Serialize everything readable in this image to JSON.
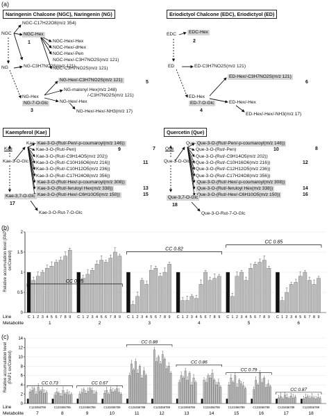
{
  "panel_labels": {
    "a": "(a)",
    "b": "(b)",
    "c": "(c)"
  },
  "pathways": {
    "ngc": {
      "title": "Naringenin Chalcone (NGC), Naringenin (NG)",
      "root": "NGC",
      "root2": "NG",
      "nodes": [
        "NGC-C17H22O8(m/z 354)",
        "NGC-Hex",
        "NGC-Hex/-Hex",
        "NGC-Hex/-dHex",
        "NGC-Hex/-Pen",
        "NGC-Hex/-C3H7NO2S(m/z 121)",
        "NGC-C3H7NO2S(m/z 121)",
        "NG-C3H7NO2S(m/z 121)",
        "NG-Hex/-C3H7NO2S(m/z 121)",
        "NG-malonyl Hex(m/z 248)",
        "/-C3H7NO2S(m/z 121)",
        "NG-Hex",
        "NG-7-O-Glc",
        "NG-Hex/-Hex",
        "NG-Hex/-Hex/-NH3(m/z 17)"
      ],
      "numbers": [
        "1",
        "5",
        "3"
      ]
    },
    "edc": {
      "title": "Eriodictyol Chalcone (EDC), Eriodictyol (ED)",
      "root": "EDC",
      "root2": "ED",
      "nodes": [
        "EDC-Hex",
        "ED-C3H7NO2S(m/z 121)",
        "ED-Hex/-C3H7NO2S(m/z 121)",
        "ED-Hex",
        "ED-7-O-Glc",
        "ED-Hex/-Hex",
        "ED-Hex/-Hex/-NH3(m/z 17)"
      ],
      "numbers": [
        "2",
        "6",
        "4"
      ]
    },
    "kae": {
      "title": "Kaempferol (Kae)",
      "root": "Kae",
      "nodes": [
        "Kae-3-O-Rut",
        "Kae-3-O-(Rut/-Pen/-p-coumaroyl(m/z 146))",
        "Kae-3-O-(Rut/-Pen)",
        "Kae-3-O-(Rut/-C9H14O5(m/z 202))",
        "Kae-3-O-(Rut/-C10H16O6(m/z 216))",
        "Kae-3-O-(Rut/-C10H12O5(m/z 236))",
        "Kae-3-O-(Rut/-C17H24O8(m/z 356))",
        "Kae-3-O-(Rut/-Hex/-p-coumaroyl(m/z 308))",
        "Kae-3-O-(Rut/-feruloyl Hex(m/z 338))",
        "Kae-3-O-(Rut/-Hex/-C6H10O5(m/z 150))",
        "Kae-3-O-Glc",
        "Kae-3,7-O-Glc",
        "Kae-3-O-Rut-7-O-Glc"
      ],
      "numbers": [
        "7",
        "9",
        "11",
        "13",
        "15",
        "17"
      ]
    },
    "que": {
      "title": "Quercetin (Que)",
      "root": "Que",
      "nodes": [
        "Que-3-O-Rut",
        "Que-3-O-(Rut/-Pen/-p-coumaroyl(m/z 146))",
        "Que-3-O-(Rut/-Pen)",
        "Que-3-O-(Rut/-C9H14O5(m/z 202))",
        "Que-3-O-(Rut/-C10H16O6(m/z 216))",
        "Que-3-O-(Rut/-C12H12O5(m/z 236))",
        "Que-3-O-(Rut/-C17H24O8(m/z 356))",
        "Que-3-O-(Rut/-Hex/-p-coumaroyl(m/z 308))",
        "Que-3-O-(Rut/-feruloyl Hex(m/z 338))",
        "Que-3-O-(Rut/-Hex/-C6H10O5(m/z 150))",
        "Que-3-O-Glc",
        "Que-3,7-O-Glc",
        "Que-3-O-Rut-7-O-Glc"
      ],
      "numbers": [
        "8",
        "10",
        "12",
        "14",
        "16",
        "18"
      ]
    }
  },
  "chart_data": [
    {
      "type": "bar",
      "ylabel": "Relative accumulation level (PAP1 ox/Control)",
      "ylim": [
        0,
        2
      ],
      "yticks": [
        "0",
        "0.5",
        "1",
        "1.5",
        "2"
      ],
      "row_labels": [
        "Line",
        "Metabolite"
      ],
      "line_ticks": [
        "C",
        "1",
        "2",
        "3",
        "4",
        "5",
        "6",
        "7",
        "8",
        "9"
      ],
      "groups": [
        "1",
        "2",
        "3",
        "4",
        "5",
        "6"
      ],
      "series": [
        {
          "name": "1",
          "values": [
            1,
            0.8,
            0.9,
            1.0,
            1.1,
            1.15,
            1.25,
            1.3,
            1.4,
            1.55
          ]
        },
        {
          "name": "2",
          "values": [
            1,
            0.85,
            0.95,
            1.05,
            1.2,
            1.3,
            1.25,
            1.35,
            1.5,
            1.4
          ]
        },
        {
          "name": "3",
          "values": [
            1,
            0.2,
            0.4,
            0.8,
            0.7,
            1.05,
            1.1,
            0.9,
            1.0,
            1.2
          ]
        },
        {
          "name": "4",
          "values": [
            1,
            0.3,
            0.3,
            0.4,
            0.35,
            0.7,
            1.0,
            0.8,
            0.85,
            0.9
          ]
        },
        {
          "name": "5",
          "values": [
            1,
            0.4,
            0.9,
            1.0,
            0.8,
            1.1,
            1.2,
            1.25,
            1.3,
            1.1
          ]
        },
        {
          "name": "6",
          "values": [
            1,
            0.3,
            0.5,
            0.7,
            0.75,
            0.9,
            1.0,
            0.8,
            0.7,
            0.85
          ]
        }
      ],
      "annotations": [
        "CC 0.85",
        "CC 0.82",
        "CC 0.85"
      ]
    },
    {
      "type": "bar",
      "ylabel": "Relative accumulation level (PAP1 ox/Control)",
      "ylim": [
        0,
        14
      ],
      "yticks": [
        "0",
        "2",
        "4",
        "6",
        "8",
        "10",
        "12",
        "14"
      ],
      "row_labels": [
        "Line",
        "Metabolite"
      ],
      "line_tick_label": "C123456789",
      "groups": [
        "7",
        "8",
        "9",
        "10",
        "11",
        "12",
        "13",
        "14",
        "15",
        "16",
        "17",
        "18"
      ],
      "series": [
        {
          "name": "7",
          "values": [
            1,
            2.5,
            2.8,
            3.2,
            2.0,
            3.5,
            2.6,
            3.0,
            2.2,
            2.4
          ]
        },
        {
          "name": "8",
          "values": [
            1,
            1.8,
            2.5,
            2.2,
            1.6,
            2.8,
            2.0,
            2.4,
            1.8,
            2.0
          ]
        },
        {
          "name": "9",
          "values": [
            1,
            2.0,
            2.4,
            3.0,
            2.2,
            2.6,
            3.2,
            2.8,
            2.0,
            2.4
          ]
        },
        {
          "name": "10",
          "values": [
            1,
            2.2,
            2.8,
            2.0,
            3.0,
            2.5,
            2.7,
            3.2,
            2.4,
            2.0
          ]
        },
        {
          "name": "11",
          "values": [
            1,
            6.0,
            8.5,
            7.2,
            9.0,
            6.5,
            8.0,
            5.5,
            7.0,
            6.0
          ]
        },
        {
          "name": "12",
          "values": [
            1,
            11.5,
            9.0,
            10.0,
            8.5,
            10.5,
            9.5,
            7.5,
            8.0,
            6.5
          ]
        },
        {
          "name": "13",
          "values": [
            1,
            4.5,
            6.0,
            5.5,
            7.0,
            5.0,
            6.5,
            4.0,
            5.5,
            4.5
          ]
        },
        {
          "name": "14",
          "values": [
            1,
            5.0,
            4.5,
            6.0,
            5.5,
            6.5,
            5.0,
            4.0,
            4.5,
            3.5
          ]
        },
        {
          "name": "15",
          "values": [
            1,
            4.0,
            5.5,
            4.5,
            6.0,
            3.5,
            5.0,
            4.2,
            3.8,
            3.2
          ]
        },
        {
          "name": "16",
          "values": [
            1,
            3.0,
            5.0,
            4.0,
            6.5,
            4.5,
            5.5,
            3.5,
            4.2,
            3.6
          ]
        },
        {
          "name": "17",
          "values": [
            1,
            1.2,
            1.5,
            1.0,
            1.8,
            1.3,
            1.1,
            1.6,
            1.2,
            1.4
          ]
        },
        {
          "name": "18",
          "values": [
            1,
            1.0,
            1.3,
            1.5,
            1.1,
            1.4,
            1.2,
            1.0,
            1.3,
            1.1
          ]
        }
      ],
      "annotations": [
        "CC 0.73",
        "CC 0.67",
        "CC 0.88",
        "CC 0.86",
        "CC 0.79",
        "CC 0.87"
      ]
    }
  ]
}
